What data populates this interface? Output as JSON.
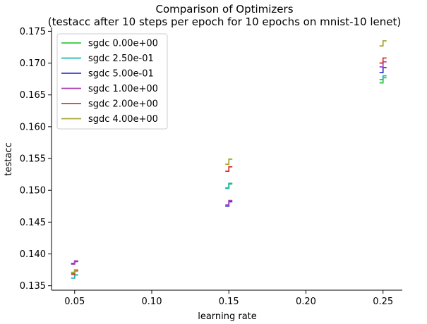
{
  "chart_data": {
    "type": "line",
    "title": "Comparison of Optimizers",
    "subtitle": "(testacc after 10 steps per epoch for 10 epochs on mnist-10 lenet)",
    "xlabel": "learning rate",
    "ylabel": "testacc",
    "xlim": [
      0.035,
      0.2625
    ],
    "ylim": [
      0.1343,
      0.1756
    ],
    "x_ticks": [
      "0.05",
      "0.10",
      "0.15",
      "0.20",
      "0.25"
    ],
    "y_ticks": [
      "0.135",
      "0.140",
      "0.145",
      "0.150",
      "0.155",
      "0.160",
      "0.165",
      "0.170",
      "0.175"
    ],
    "legend_position": "top-left",
    "grid": false,
    "step_style": "short step segments centered at each learning rate",
    "series": [
      {
        "name": "sgdc 0.00e+00",
        "color": "#33cc33",
        "points": [
          {
            "x": 0.05,
            "y": [
              0.137,
              0.1373
            ]
          },
          {
            "x": 0.15,
            "y": [
              0.1504,
              0.151
            ]
          },
          {
            "x": 0.25,
            "y": [
              0.1669,
              0.1677
            ]
          }
        ]
      },
      {
        "name": "sgdc 2.50e-01",
        "color": "#22b5b5",
        "points": [
          {
            "x": 0.05,
            "y": [
              0.1362,
              0.1367
            ]
          },
          {
            "x": 0.15,
            "y": [
              0.1503,
              0.1511
            ]
          },
          {
            "x": 0.25,
            "y": [
              0.1674,
              0.168
            ]
          }
        ]
      },
      {
        "name": "sgdc 5.00e-01",
        "color": "#3a3ad6",
        "points": [
          {
            "x": 0.05,
            "y": [
              0.1385,
              0.1388
            ]
          },
          {
            "x": 0.15,
            "y": [
              0.1475,
              0.1482
            ]
          },
          {
            "x": 0.25,
            "y": [
              0.1685,
              0.1693
            ]
          }
        ]
      },
      {
        "name": "sgdc 1.00e+00",
        "color": "#b040b8",
        "points": [
          {
            "x": 0.05,
            "y": [
              0.1384,
              0.1389
            ]
          },
          {
            "x": 0.15,
            "y": [
              0.1477,
              0.1484
            ]
          },
          {
            "x": 0.25,
            "y": [
              0.1694,
              0.1702
            ]
          }
        ]
      },
      {
        "name": "sgdc 2.00e+00",
        "color": "#d63a3a",
        "points": [
          {
            "x": 0.05,
            "y": [
              0.1368,
              0.1374
            ]
          },
          {
            "x": 0.15,
            "y": [
              0.153,
              0.1537
            ]
          },
          {
            "x": 0.25,
            "y": [
              0.17,
              0.1708
            ]
          }
        ]
      },
      {
        "name": "sgdc 4.00e+00",
        "color": "#a8a832",
        "points": [
          {
            "x": 0.05,
            "y": [
              0.1371,
              0.1375
            ]
          },
          {
            "x": 0.15,
            "y": [
              0.1541,
              0.1549
            ]
          },
          {
            "x": 0.25,
            "y": [
              0.1727,
              0.1735
            ]
          }
        ]
      }
    ]
  }
}
